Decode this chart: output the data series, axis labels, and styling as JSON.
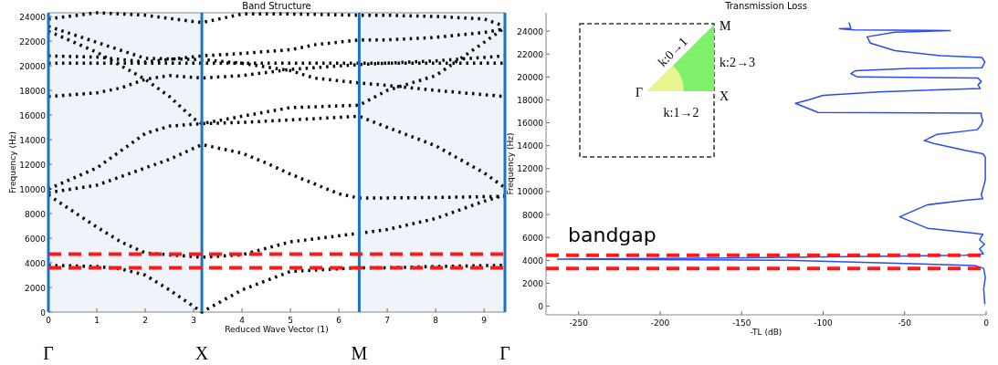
{
  "chart_data": [
    {
      "type": "line",
      "title": "Band Structure",
      "xlabel": "Reduced Wave Vector (1)",
      "ylabel": "Frequency (Hz)",
      "xlim": [
        0,
        9.43
      ],
      "xticks": [
        0,
        1,
        2,
        3,
        4,
        5,
        6,
        7,
        8,
        9
      ],
      "ylim": [
        0,
        24300
      ],
      "yticks": [
        0,
        2000,
        4000,
        6000,
        8000,
        10000,
        12000,
        14000,
        16000,
        18000,
        20000,
        22000,
        24000
      ],
      "line_style": "dotted",
      "bands": [
        {
          "axis": "x",
          "from": 0,
          "to": 3.17,
          "color": "#eef4fa"
        },
        {
          "axis": "x",
          "from": 6.42,
          "to": 9.43,
          "color": "#eef4fa"
        }
      ],
      "ref_lines": [
        {
          "axis": "x",
          "value": 0,
          "label": "Γ",
          "color": "#1a73c8",
          "line_style": "solid"
        },
        {
          "axis": "x",
          "value": 3.17,
          "label": "X",
          "color": "#1a73c8",
          "line_style": "solid"
        },
        {
          "axis": "x",
          "value": 6.42,
          "label": "M",
          "color": "#1a73c8",
          "line_style": "solid"
        },
        {
          "axis": "x",
          "value": 9.43,
          "label": "Γ",
          "color": "#1a73c8",
          "line_style": "solid"
        },
        {
          "axis": "y",
          "value": 4700,
          "color": "#ff1a1a",
          "line_style": "dashed"
        },
        {
          "axis": "y",
          "value": 3600,
          "color": "#ff1a1a",
          "line_style": "dashed"
        }
      ],
      "series": [
        {
          "color": "#000000",
          "x": [
            0,
            1,
            1.5,
            2,
            2.5,
            3.17,
            4,
            5,
            6.42,
            7,
            8,
            9.43
          ],
          "values": [
            3800,
            3700,
            3500,
            3000,
            1800,
            0,
            1800,
            3300,
            3600,
            3600,
            3700,
            3800
          ]
        },
        {
          "color": "#000000",
          "x": [
            0,
            1,
            1.5,
            2,
            3.17,
            4,
            5,
            6.42,
            7,
            8,
            9,
            9.43
          ],
          "values": [
            9500,
            6900,
            5700,
            4800,
            4450,
            4650,
            5700,
            6400,
            6700,
            7600,
            9000,
            9500
          ]
        },
        {
          "color": "#000000",
          "x": [
            0,
            1,
            2,
            2.5,
            3.17,
            4,
            4.5,
            5,
            6,
            6.42,
            8,
            9.43
          ],
          "values": [
            9700,
            10300,
            11700,
            12400,
            13600,
            12900,
            12100,
            11200,
            9600,
            9250,
            9300,
            9400
          ]
        },
        {
          "color": "#000000",
          "x": [
            0,
            1,
            2,
            2.5,
            3.17,
            4,
            5,
            6.42,
            7,
            8,
            9,
            9.43
          ],
          "values": [
            10000,
            11700,
            14500,
            15100,
            15300,
            15400,
            15600,
            15900,
            15000,
            13500,
            11300,
            10100
          ]
        },
        {
          "color": "#000000",
          "x": [
            0,
            1,
            1.5,
            2,
            2.5,
            3.17,
            4,
            5,
            6.42,
            8,
            9.43
          ],
          "values": [
            17500,
            17800,
            18200,
            18900,
            19200,
            19000,
            19200,
            19700,
            20100,
            20400,
            20800
          ]
        },
        {
          "color": "#000000",
          "x": [
            0,
            1,
            2,
            3.17,
            4,
            5,
            5.5,
            6.42,
            7,
            8,
            9.43
          ],
          "values": [
            23200,
            21900,
            20600,
            20500,
            20200,
            19600,
            19000,
            18600,
            18400,
            18000,
            17500
          ]
        },
        {
          "color": "#000000",
          "x": [
            0,
            1,
            2,
            2.5,
            3,
            3.17,
            4,
            5,
            6.42,
            7,
            8,
            9,
            9.43
          ],
          "values": [
            22800,
            21100,
            18900,
            17500,
            15700,
            15300,
            15900,
            16600,
            16800,
            18000,
            19200,
            21900,
            23100
          ]
        },
        {
          "color": "#000000",
          "x": [
            0,
            1,
            2,
            3.17,
            4,
            5,
            6.42,
            7,
            8,
            9,
            9.43
          ],
          "values": [
            23800,
            24300,
            24100,
            23500,
            24200,
            24200,
            24100,
            24100,
            24000,
            23800,
            23200
          ]
        },
        {
          "color": "#000000",
          "x": [
            0,
            9.43
          ],
          "values": [
            20200,
            20200
          ]
        },
        {
          "color": "#000000",
          "x": [
            0,
            1,
            2,
            3.17,
            4,
            5,
            5.5,
            6.42,
            7,
            8,
            9,
            9.43
          ],
          "values": [
            20800,
            20700,
            20300,
            20800,
            21000,
            21300,
            21700,
            22100,
            22100,
            22300,
            22700,
            23000
          ]
        }
      ]
    },
    {
      "type": "line",
      "title": "Transmission Loss",
      "xlabel": "-TL (dB)",
      "ylabel": "Frequency (Hz)",
      "xlim": [
        -270,
        0
      ],
      "xticks": [
        -250,
        -200,
        -150,
        -100,
        -50,
        0
      ],
      "ylim": [
        -750,
        25600
      ],
      "yticks": [
        0,
        2000,
        4000,
        6000,
        8000,
        10000,
        12000,
        14000,
        16000,
        18000,
        20000,
        22000,
        24000
      ],
      "ref_lines": [
        {
          "axis": "y",
          "value": 4450,
          "color": "#ff1a1a",
          "line_style": "dashed"
        },
        {
          "axis": "y",
          "value": 3300,
          "color": "#ff1a1a",
          "line_style": "dashed"
        }
      ],
      "annotations": [
        "bandgap",
        "M",
        "k:2→3",
        "Γ",
        "X",
        "k:1→2",
        "k:0→1"
      ],
      "series": [
        {
          "color": "#2a4bf0",
          "x": [
            -0.8,
            -1.5,
            -0.5,
            -1.5,
            -7,
            -122,
            -263,
            -160,
            -13,
            -1.7,
            -4,
            -1,
            -4,
            -2,
            -9,
            -36,
            -53,
            -36,
            -13,
            -2,
            -3,
            -0.5,
            -0.5,
            -2,
            -13,
            -32,
            -38,
            -30,
            -5.5,
            -3,
            -2,
            -3,
            -3,
            -103,
            -117,
            -109,
            -100,
            -66,
            -3.6,
            -5,
            -3,
            -5,
            -79,
            -83,
            -80,
            -47,
            -2.6,
            -0.8,
            -2.6,
            -28,
            -56,
            -71,
            -73,
            -56,
            -22,
            -81,
            -90,
            -83,
            -84
          ],
          "values": [
            200,
            1500,
            2500,
            3300,
            3550,
            4000,
            4100,
            4200,
            4450,
            4570,
            5000,
            5400,
            5800,
            6280,
            6400,
            6800,
            7800,
            8850,
            9250,
            9380,
            9700,
            11000,
            13000,
            13300,
            13600,
            14200,
            14450,
            15000,
            15400,
            15800,
            16200,
            16600,
            16850,
            16900,
            17700,
            18000,
            18400,
            18700,
            19000,
            19300,
            19600,
            19900,
            20000,
            20300,
            20550,
            20750,
            20800,
            21300,
            21700,
            21850,
            22300,
            22950,
            23500,
            23900,
            24050,
            24100,
            24200,
            24250,
            24700
          ]
        }
      ]
    }
  ]
}
